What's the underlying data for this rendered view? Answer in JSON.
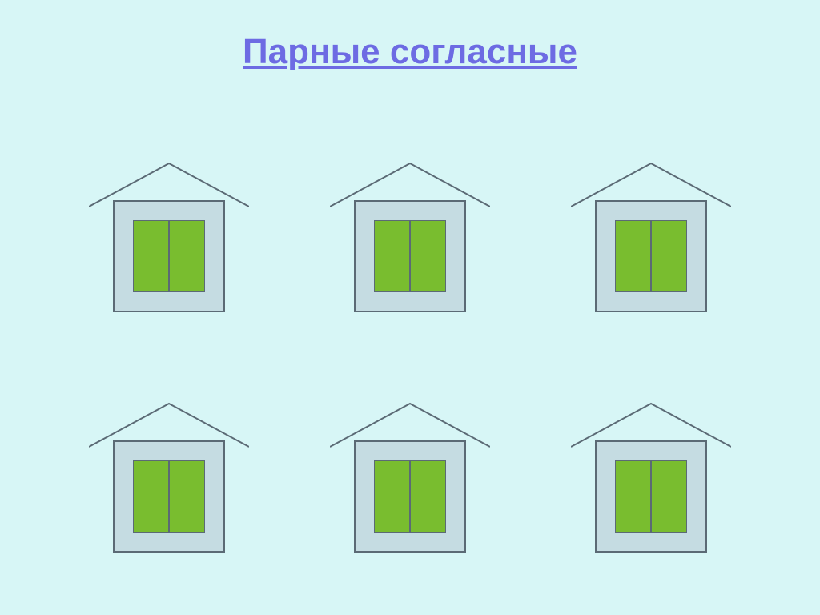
{
  "slide": {
    "background_color": "#d7f6f6",
    "title": "Парные согласные",
    "title_color": "#6d6be3",
    "title_fontsize": 44
  },
  "grid": {
    "rows": 2,
    "cols": 3,
    "count": 6
  },
  "house_style": {
    "roof_stroke": "#5b6a75",
    "roof_stroke_width": 2,
    "body_fill": "#c5dce2",
    "body_border": "#5b6a75",
    "body_border_width": 2,
    "window_fill": "#79bd2f",
    "window_border": "#5b6a75",
    "window_border_width": 1,
    "panes": 2
  },
  "type": "infographic"
}
